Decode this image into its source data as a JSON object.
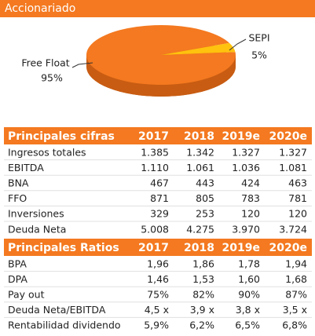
{
  "header": {
    "title": "Accionariado"
  },
  "chart_data": {
    "type": "pie",
    "categories": [
      "Free Float",
      "SEPI"
    ],
    "values": [
      95,
      5
    ],
    "value_labels": [
      "95%",
      "5%"
    ],
    "colors": [
      "#f47920",
      "#ffc20e"
    ]
  },
  "tables": [
    {
      "columns": [
        "Principales cifras",
        "2017",
        "2018",
        "2019e",
        "2020e"
      ],
      "rows": [
        [
          "Ingresos totales",
          "1.385",
          "1.342",
          "1.327",
          "1.327"
        ],
        [
          "EBITDA",
          "1.110",
          "1.061",
          "1.036",
          "1.081"
        ],
        [
          "BNA",
          "467",
          "443",
          "424",
          "463"
        ],
        [
          "FFO",
          "871",
          "805",
          "783",
          "781"
        ],
        [
          "Inversiones",
          "329",
          "253",
          "120",
          "120"
        ],
        [
          "Deuda Neta",
          "5.008",
          "4.275",
          "3.970",
          "3.724"
        ]
      ]
    },
    {
      "columns": [
        "Principales Ratios",
        "2017",
        "2018",
        "2019e",
        "2020e"
      ],
      "rows": [
        [
          "BPA",
          "1,96",
          "1,86",
          "1,78",
          "1,94"
        ],
        [
          "DPA",
          "1,46",
          "1,53",
          "1,60",
          "1,68"
        ],
        [
          "Pay out",
          "75%",
          "82%",
          "90%",
          "87%"
        ],
        [
          "Deuda Neta/EBITDA",
          "4,5 x",
          "3,9 x",
          "3,8 x",
          "3,5 x"
        ],
        [
          "Rentabilidad dividendo",
          "5,9%",
          "6,2%",
          "6,5%",
          "6,8%"
        ]
      ]
    }
  ]
}
